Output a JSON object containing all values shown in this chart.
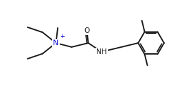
{
  "bg_color": "#ffffff",
  "line_color": "#1a1a1a",
  "label_color_N": "#0000cc",
  "line_width": 1.4,
  "font_size": 7.5,
  "fig_width": 2.84,
  "fig_height": 1.26,
  "dpi": 100,
  "xlim": [
    0,
    10.5
  ],
  "ylim": [
    0,
    4.5
  ]
}
